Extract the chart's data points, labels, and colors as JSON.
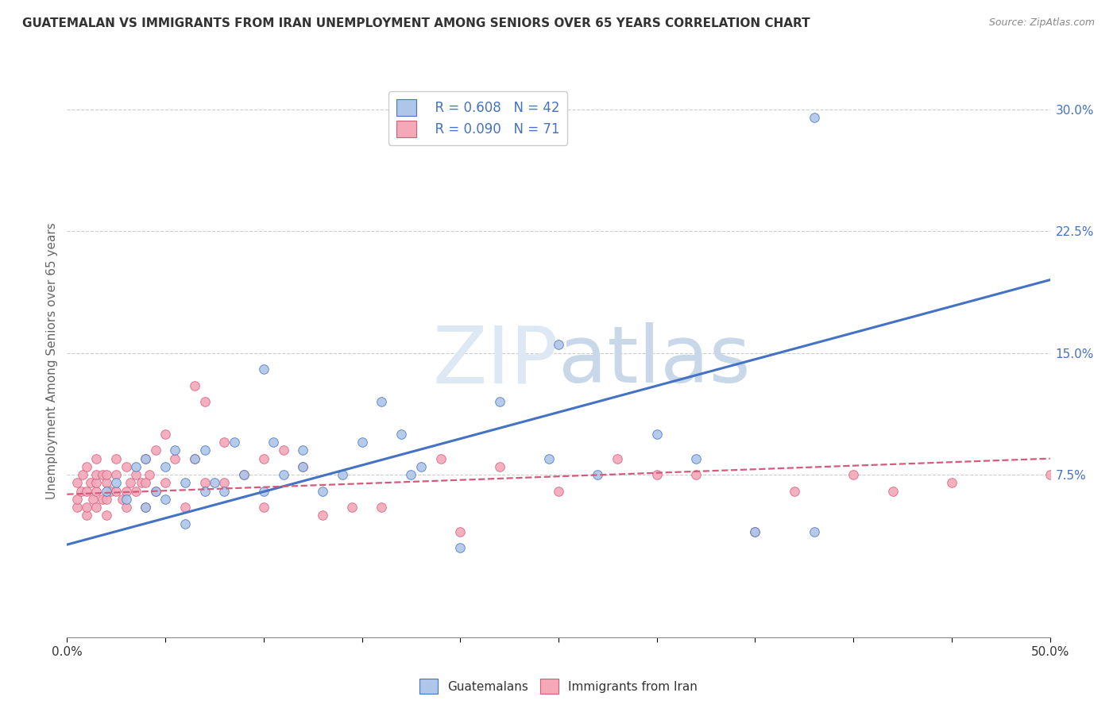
{
  "title": "GUATEMALAN VS IMMIGRANTS FROM IRAN UNEMPLOYMENT AMONG SENIORS OVER 65 YEARS CORRELATION CHART",
  "source": "Source: ZipAtlas.com",
  "ylabel": "Unemployment Among Seniors over 65 years",
  "xlim": [
    0.0,
    0.5
  ],
  "ylim": [
    -0.025,
    0.315
  ],
  "yticks_right": [
    0.075,
    0.15,
    0.225,
    0.3
  ],
  "ytick_labels_right": [
    "7.5%",
    "15.0%",
    "22.5%",
    "30.0%"
  ],
  "background_color": "#ffffff",
  "watermark_zip": "ZIP",
  "watermark_atlas": "atlas",
  "legend_R1": "R = 0.608",
  "legend_N1": "N = 42",
  "legend_R2": "R = 0.090",
  "legend_N2": "N = 71",
  "guatemalan_color": "#aec6e8",
  "iran_color": "#f4a8b8",
  "line1_color": "#4472c4",
  "line2_color": "#d45b7a",
  "grid_color": "#cccccc",
  "guatemalan_x": [
    0.02,
    0.025,
    0.03,
    0.035,
    0.04,
    0.04,
    0.045,
    0.05,
    0.05,
    0.055,
    0.06,
    0.06,
    0.065,
    0.07,
    0.07,
    0.075,
    0.08,
    0.085,
    0.09,
    0.1,
    0.1,
    0.105,
    0.11,
    0.12,
    0.12,
    0.13,
    0.14,
    0.15,
    0.16,
    0.17,
    0.175,
    0.18,
    0.2,
    0.22,
    0.245,
    0.25,
    0.27,
    0.3,
    0.32,
    0.35,
    0.38,
    0.38
  ],
  "guatemalan_y": [
    0.065,
    0.07,
    0.06,
    0.08,
    0.055,
    0.085,
    0.065,
    0.06,
    0.08,
    0.09,
    0.045,
    0.07,
    0.085,
    0.065,
    0.09,
    0.07,
    0.065,
    0.095,
    0.075,
    0.065,
    0.14,
    0.095,
    0.075,
    0.08,
    0.09,
    0.065,
    0.075,
    0.095,
    0.12,
    0.1,
    0.075,
    0.08,
    0.03,
    0.12,
    0.085,
    0.155,
    0.075,
    0.1,
    0.085,
    0.04,
    0.04,
    0.295
  ],
  "iran_x": [
    0.005,
    0.005,
    0.005,
    0.007,
    0.008,
    0.01,
    0.01,
    0.01,
    0.01,
    0.012,
    0.013,
    0.015,
    0.015,
    0.015,
    0.015,
    0.015,
    0.018,
    0.018,
    0.02,
    0.02,
    0.02,
    0.02,
    0.022,
    0.025,
    0.025,
    0.025,
    0.028,
    0.03,
    0.03,
    0.03,
    0.032,
    0.035,
    0.035,
    0.038,
    0.04,
    0.04,
    0.04,
    0.042,
    0.045,
    0.045,
    0.05,
    0.05,
    0.055,
    0.06,
    0.065,
    0.065,
    0.07,
    0.07,
    0.08,
    0.08,
    0.09,
    0.1,
    0.1,
    0.11,
    0.12,
    0.13,
    0.145,
    0.16,
    0.19,
    0.2,
    0.22,
    0.25,
    0.28,
    0.3,
    0.32,
    0.35,
    0.37,
    0.4,
    0.42,
    0.45,
    0.5
  ],
  "iran_y": [
    0.055,
    0.06,
    0.07,
    0.065,
    0.075,
    0.05,
    0.055,
    0.065,
    0.08,
    0.07,
    0.06,
    0.055,
    0.065,
    0.07,
    0.075,
    0.085,
    0.06,
    0.075,
    0.05,
    0.06,
    0.07,
    0.075,
    0.065,
    0.065,
    0.075,
    0.085,
    0.06,
    0.055,
    0.065,
    0.08,
    0.07,
    0.065,
    0.075,
    0.07,
    0.055,
    0.07,
    0.085,
    0.075,
    0.065,
    0.09,
    0.07,
    0.1,
    0.085,
    0.055,
    0.085,
    0.13,
    0.07,
    0.12,
    0.07,
    0.095,
    0.075,
    0.055,
    0.085,
    0.09,
    0.08,
    0.05,
    0.055,
    0.055,
    0.085,
    0.04,
    0.08,
    0.065,
    0.085,
    0.075,
    0.075,
    0.04,
    0.065,
    0.075,
    0.065,
    0.07,
    0.075
  ],
  "line1_x_start": 0.0,
  "line1_x_end": 0.5,
  "line1_y_start": 0.032,
  "line1_y_end": 0.195,
  "line2_x_start": 0.0,
  "line2_x_end": 0.5,
  "line2_y_start": 0.063,
  "line2_y_end": 0.085
}
